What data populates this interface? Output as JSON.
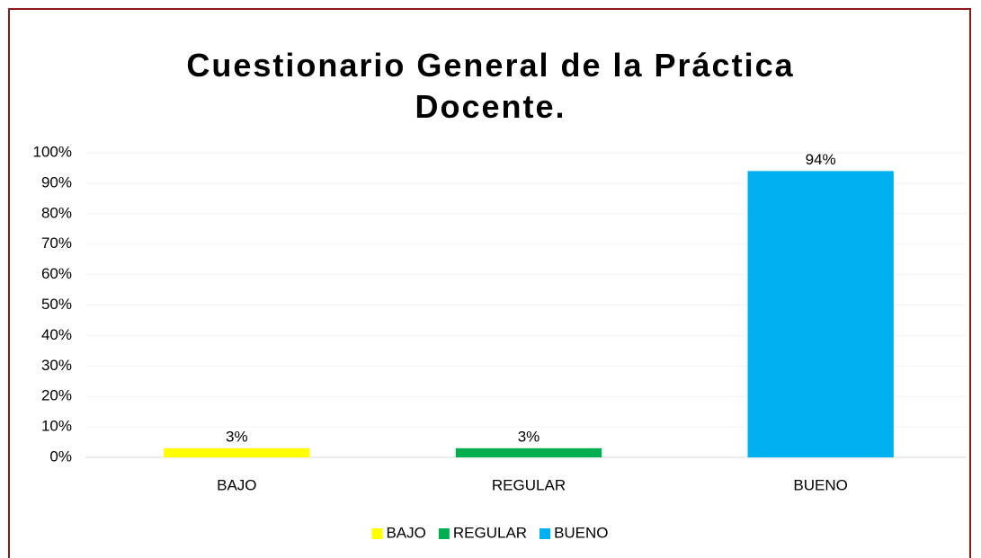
{
  "chart_data": {
    "type": "bar",
    "title": "Cuestionario General de la Práctica Docente.",
    "categories": [
      "BAJO",
      "REGULAR",
      "BUENO"
    ],
    "values": [
      3,
      3,
      94
    ],
    "value_labels": [
      "3%",
      "3%",
      "94%"
    ],
    "colors": [
      "#ffff00",
      "#00b050",
      "#00b0f0"
    ],
    "ylim": [
      0,
      100
    ],
    "yticks": [
      {
        "value": 0,
        "label": "0%"
      },
      {
        "value": 10,
        "label": "10%"
      },
      {
        "value": 20,
        "label": "20%"
      },
      {
        "value": 30,
        "label": "30%"
      },
      {
        "value": 40,
        "label": "40%"
      },
      {
        "value": 50,
        "label": "50%"
      },
      {
        "value": 60,
        "label": "60%"
      },
      {
        "value": 70,
        "label": "70%"
      },
      {
        "value": 80,
        "label": "80%"
      },
      {
        "value": 90,
        "label": "90%"
      },
      {
        "value": 100,
        "label": "100%"
      }
    ],
    "grid": true,
    "legend": "bottom"
  }
}
